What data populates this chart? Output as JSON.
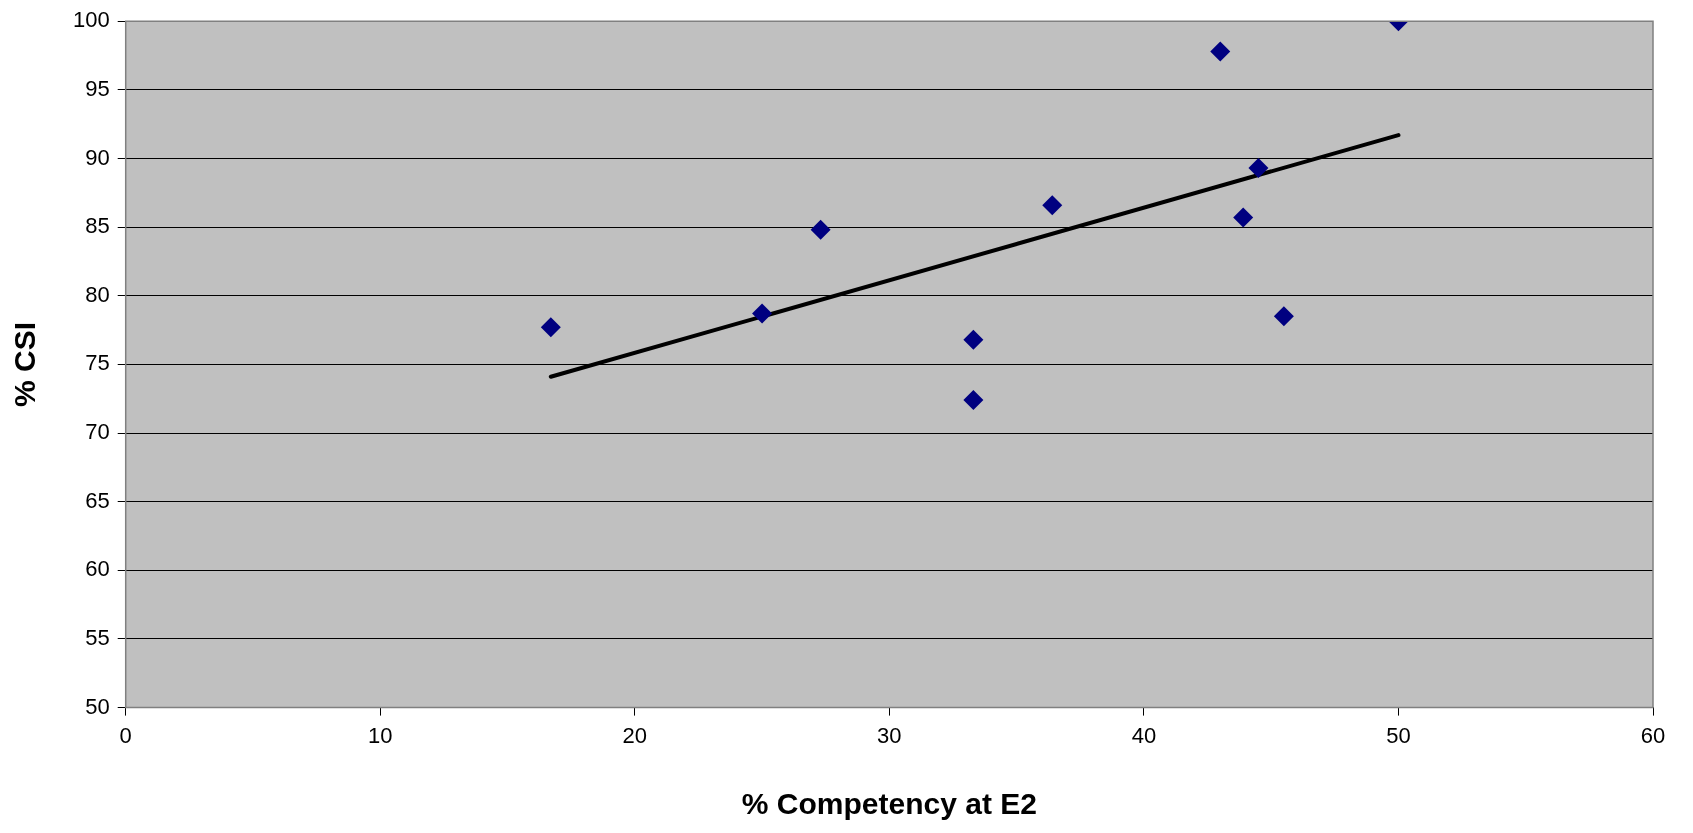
{
  "chart_data": {
    "type": "scatter",
    "xlabel": "% Competency at E2",
    "ylabel": "% CSI",
    "xlim": [
      0,
      60
    ],
    "xticks": [
      0,
      10,
      20,
      30,
      40,
      50,
      60
    ],
    "ylim": [
      50,
      100
    ],
    "yticks": [
      50,
      55,
      60,
      65,
      70,
      75,
      80,
      85,
      90,
      95,
      100
    ],
    "grid": "y",
    "legend": false,
    "marker": "diamond",
    "series": [
      {
        "type": "scatter",
        "color": "#000080",
        "x": [
          16.7,
          25,
          27.3,
          33.3,
          33.3,
          36.4,
          43,
          43.9,
          44.5,
          45.5,
          50
        ],
        "values": [
          77.7,
          78.7,
          84.8,
          76.8,
          72.4,
          86.6,
          97.8,
          85.7,
          89.3,
          78.5,
          100
        ]
      },
      {
        "type": "line",
        "color": "#000000",
        "marker": "none",
        "x": [
          16.7,
          50
        ],
        "values": [
          74.1,
          91.7
        ]
      }
    ]
  }
}
